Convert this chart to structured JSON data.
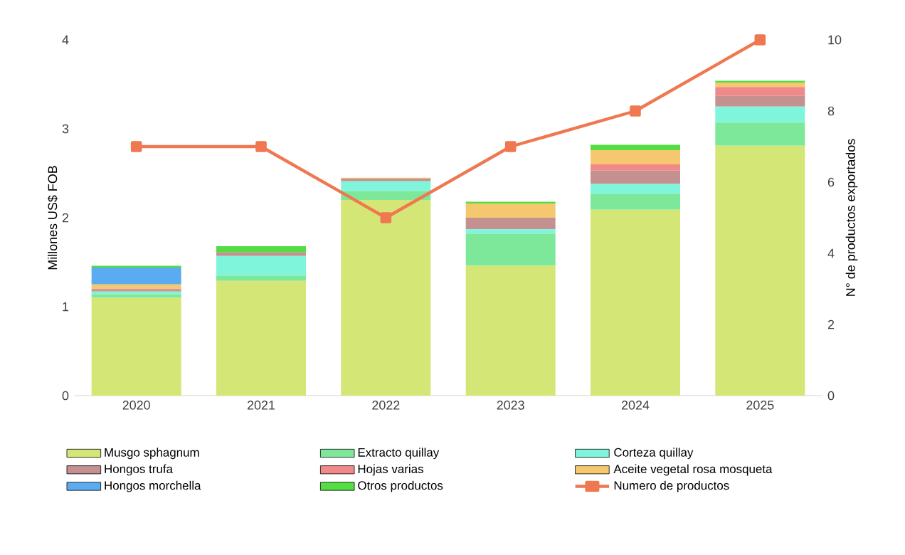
{
  "chart_data": {
    "type": "bar",
    "stacked": true,
    "categories": [
      "2020",
      "2021",
      "2022",
      "2023",
      "2024",
      "2025"
    ],
    "ylabel": "Millones US$ FOB",
    "y2label": "N° de productos exportados",
    "ylim": [
      0,
      4
    ],
    "yticks": [
      0,
      1,
      2,
      3,
      4
    ],
    "y2lim": [
      0,
      10
    ],
    "y2ticks": [
      0,
      2,
      4,
      6,
      8,
      10
    ],
    "legend": "bottom",
    "marker": "square",
    "series": [
      {
        "name": "Musgo sphagnum",
        "color": "#d4e675",
        "values": [
          1.1,
          1.29,
          2.2,
          1.46,
          2.09,
          2.81
        ]
      },
      {
        "name": "Extracto quillay",
        "color": "#7ee89a",
        "values": [
          0.04,
          0.06,
          0.1,
          0.36,
          0.18,
          0.26
        ]
      },
      {
        "name": "Corteza quillay",
        "color": "#7ff5dc",
        "values": [
          0.03,
          0.22,
          0.11,
          0.05,
          0.11,
          0.18
        ]
      },
      {
        "name": "Hongos trufa",
        "color": "#c49090",
        "values": [
          0.02,
          0.04,
          0.03,
          0.13,
          0.15,
          0.12
        ]
      },
      {
        "name": "Hojas varias",
        "color": "#f08a8a",
        "values": [
          0.01,
          0,
          0,
          0,
          0.07,
          0.1
        ]
      },
      {
        "name": "Aceite vegetal rosa mosqueta",
        "color": "#f5c870",
        "values": [
          0.05,
          0,
          0.01,
          0.16,
          0.16,
          0.05
        ]
      },
      {
        "name": "Hongos morchella",
        "color": "#5aabf0",
        "values": [
          0.19,
          0,
          0,
          0,
          0,
          0
        ]
      },
      {
        "name": "Otros productos",
        "color": "#55dd44",
        "values": [
          0.02,
          0.07,
          0,
          0.02,
          0.06,
          0.02
        ]
      },
      {
        "name": "Numero de productos",
        "type": "line",
        "axis": "y2",
        "color": "#f07850",
        "values": [
          7,
          7,
          5,
          7,
          8,
          10
        ]
      }
    ]
  }
}
